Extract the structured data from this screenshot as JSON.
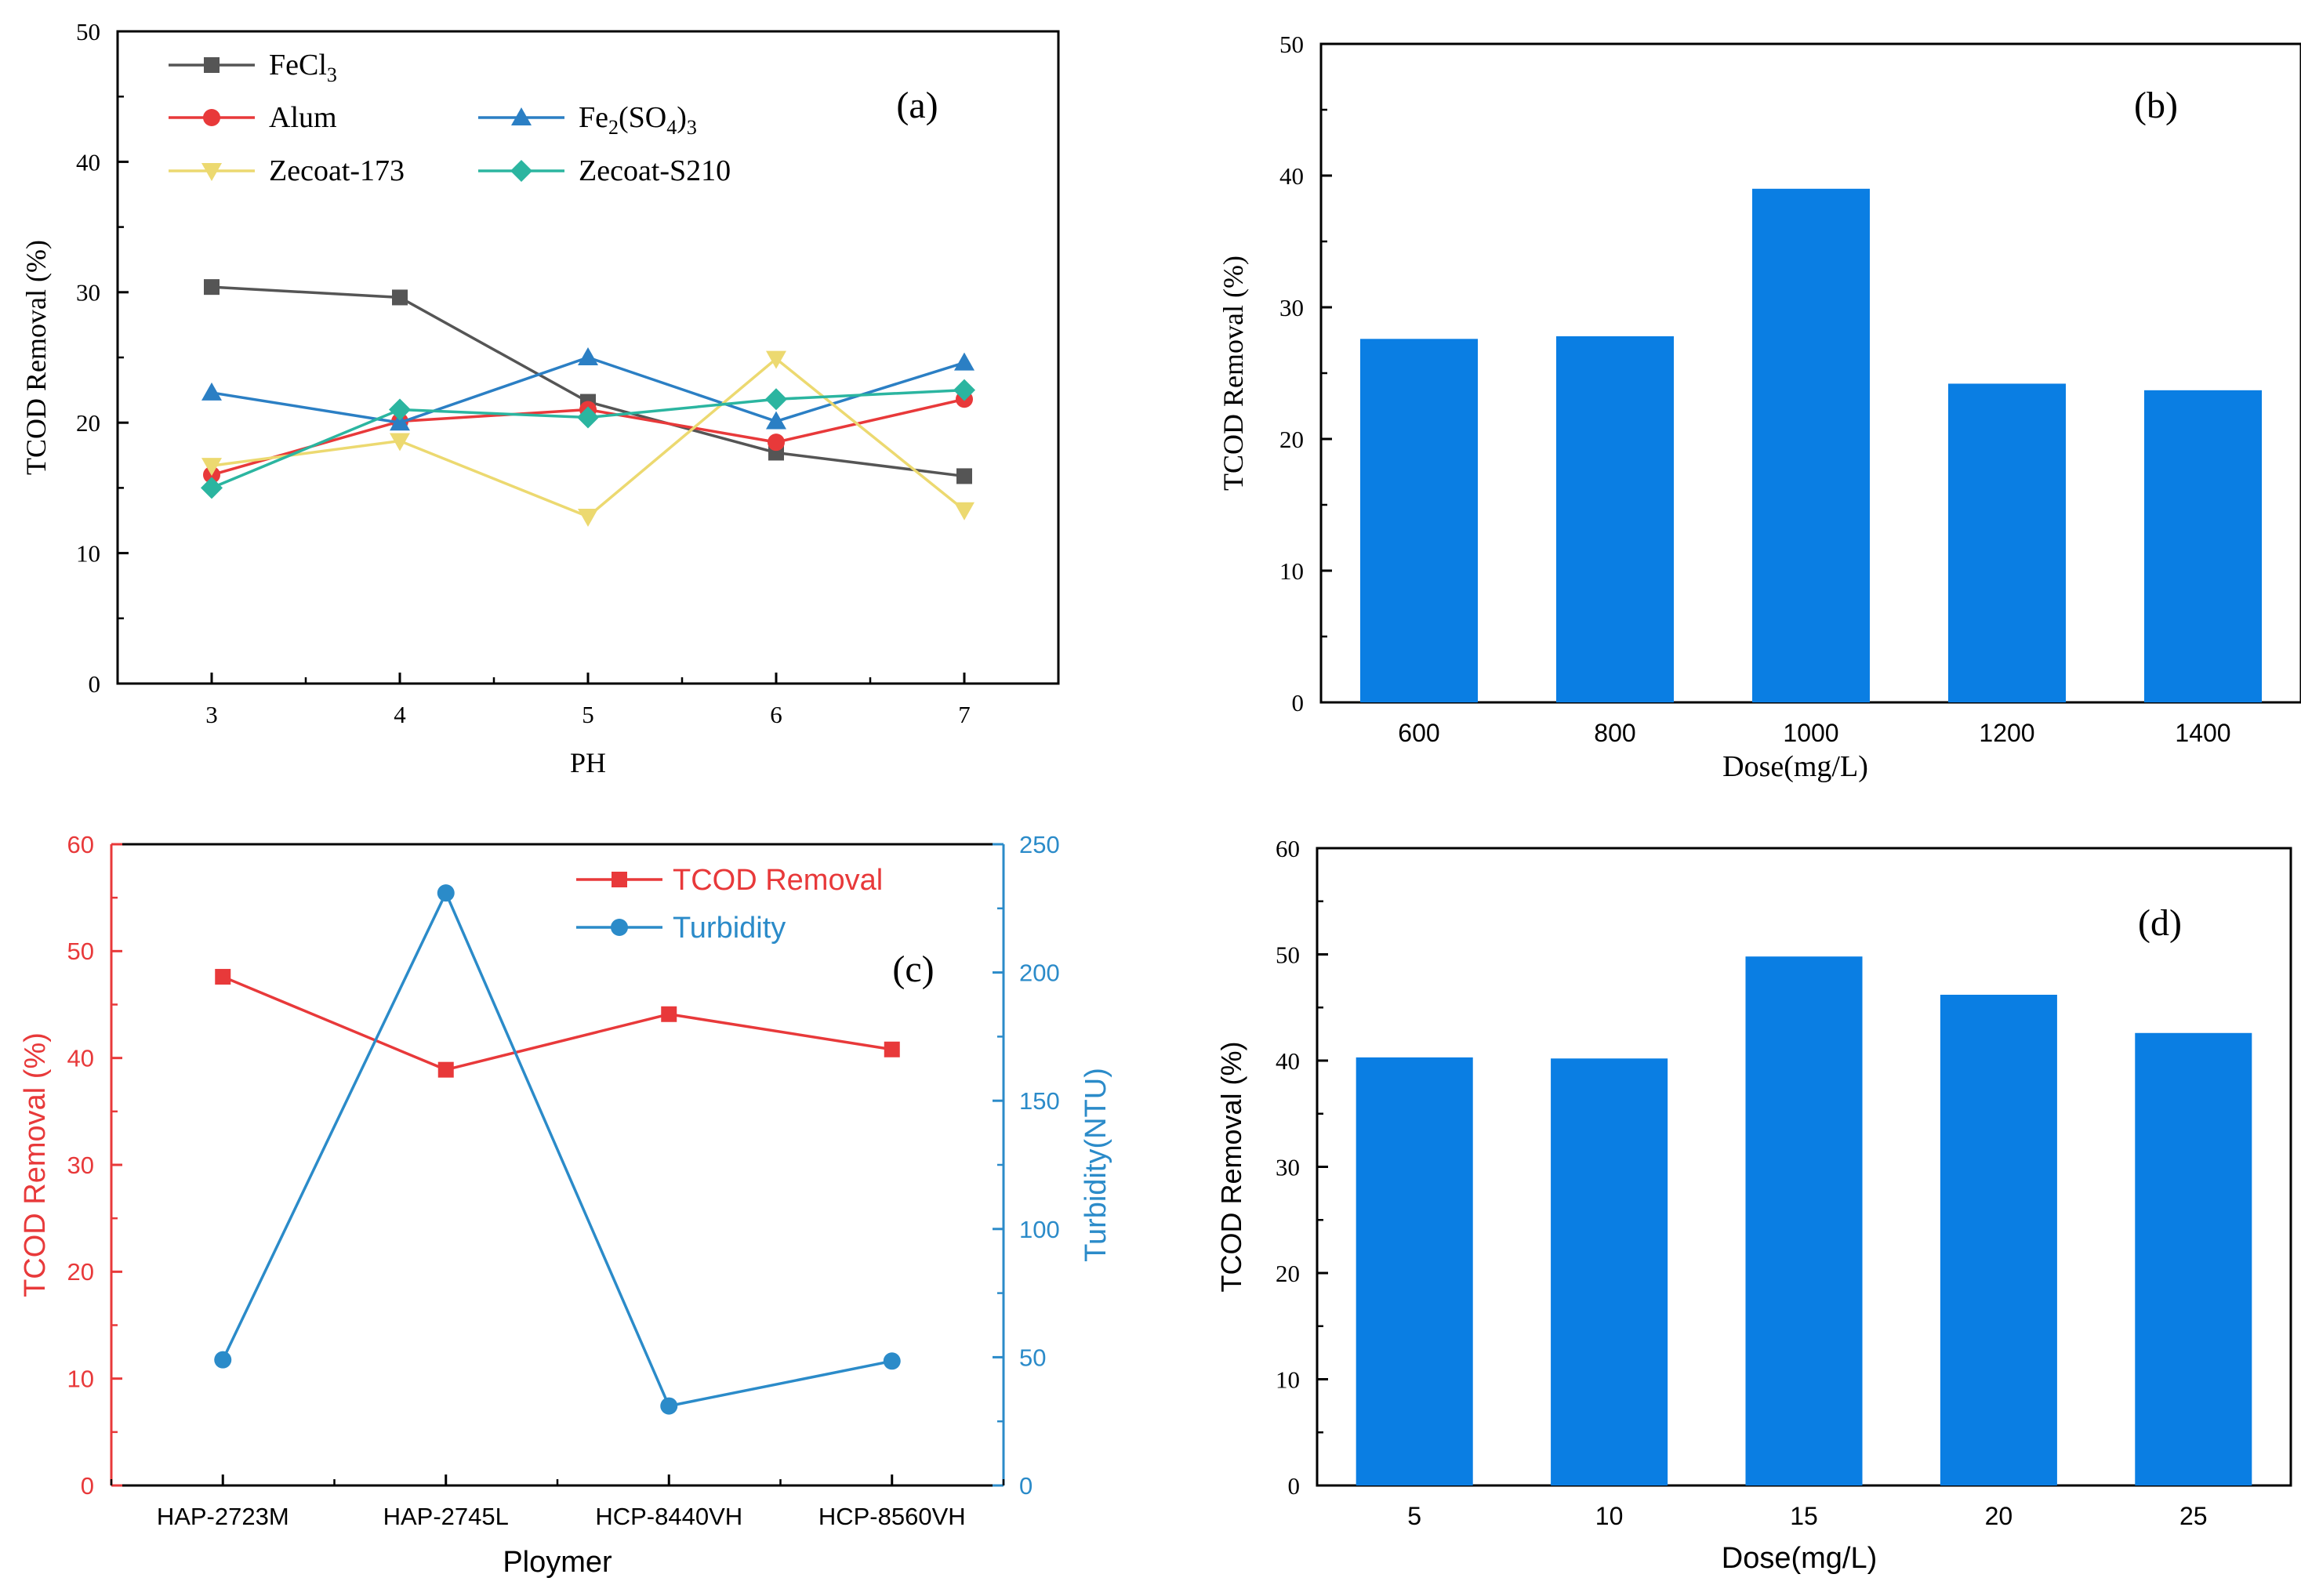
{
  "chart_data": [
    {
      "id": "a",
      "type": "line",
      "panel_label": "(a)",
      "xlabel": "PH",
      "ylabel": "TCOD Removal (%)",
      "x": [
        3,
        4,
        5,
        6,
        7
      ],
      "xlim": [
        2.5,
        7.5
      ],
      "ylim": [
        0,
        50
      ],
      "yticks": [
        0,
        10,
        20,
        30,
        40,
        50
      ],
      "grid": false,
      "legend_position": "top-left",
      "series": [
        {
          "name": "FeCl3",
          "label_main": "FeCl",
          "label_sub": "3",
          "label_tail": "",
          "values": [
            30.4,
            29.6,
            21.6,
            17.7,
            15.9
          ],
          "color": "#555555",
          "marker": "square"
        },
        {
          "name": "Alum",
          "label_main": "Alum",
          "label_sub": "",
          "label_tail": "",
          "values": [
            16.0,
            20.1,
            21.0,
            18.5,
            21.8
          ],
          "color": "#e8393a",
          "marker": "circle"
        },
        {
          "name": "Fe2(SO4)3",
          "label_main": "Fe",
          "label_sub": "2",
          "label_tail": "(SO",
          "label_sub2": "4",
          "label_tail2": ")",
          "label_sub3": "3",
          "values": [
            22.3,
            20.0,
            25.0,
            20.1,
            24.6
          ],
          "color": "#2b7fc4",
          "marker": "triangle-up"
        },
        {
          "name": "Zecoat-173",
          "label_main": "Zecoat-173",
          "label_sub": "",
          "label_tail": "",
          "values": [
            16.7,
            18.6,
            12.8,
            24.9,
            13.3
          ],
          "color": "#ecd970",
          "marker": "triangle-down"
        },
        {
          "name": "Zecoat-S210",
          "label_main": "Zecoat-S210",
          "label_sub": "",
          "label_tail": "",
          "values": [
            15.0,
            21.0,
            20.4,
            21.8,
            22.5
          ],
          "color": "#2bb5a0",
          "marker": "diamond"
        }
      ]
    },
    {
      "id": "b",
      "type": "bar",
      "panel_label": "(b)",
      "xlabel": "Dose(mg/L)",
      "ylabel": "TCOD Removal (%)",
      "categories": [
        "600",
        "800",
        "1000",
        "1200",
        "1400"
      ],
      "values": [
        27.6,
        27.8,
        39.0,
        24.2,
        23.7
      ],
      "ylim": [
        0,
        50
      ],
      "yticks": [
        0,
        10,
        20,
        30,
        40,
        50
      ],
      "color": "#0a7ee3",
      "grid": false
    },
    {
      "id": "c",
      "type": "line",
      "panel_label": "(c)",
      "xlabel": "Ploymer",
      "ylabel": "TCOD Removal (%)",
      "ylabel_right": "Turbidity(NTU)",
      "categories": [
        "HAP-2723M",
        "HAP-2745L",
        "HCP-8440VH",
        "HCP-8560VH"
      ],
      "ylim": [
        0,
        60
      ],
      "yticks": [
        0,
        10,
        20,
        30,
        40,
        50,
        60
      ],
      "ylim_right": [
        0,
        250
      ],
      "yticks_right": [
        0,
        50,
        100,
        150,
        200,
        250
      ],
      "grid": false,
      "legend_position": "top-right",
      "series": [
        {
          "name": "TCOD Removal",
          "values": [
            47.6,
            38.9,
            44.1,
            40.8
          ],
          "color": "#e8393a",
          "marker": "square",
          "axis": "left"
        },
        {
          "name": "Turbidity",
          "values": [
            49.0,
            231.0,
            31.0,
            48.5
          ],
          "color": "#2b8bc9",
          "marker": "circle",
          "axis": "right"
        }
      ]
    },
    {
      "id": "d",
      "type": "bar",
      "panel_label": "(d)",
      "xlabel": "Dose(mg/L)",
      "ylabel": "TCOD Removal (%)",
      "categories": [
        "5",
        "10",
        "15",
        "20",
        "25"
      ],
      "values": [
        40.3,
        40.2,
        49.8,
        46.2,
        42.6
      ],
      "ylim": [
        0,
        60
      ],
      "yticks": [
        0,
        10,
        20,
        30,
        40,
        50,
        60
      ],
      "color": "#0a7ee3",
      "grid": false
    }
  ]
}
